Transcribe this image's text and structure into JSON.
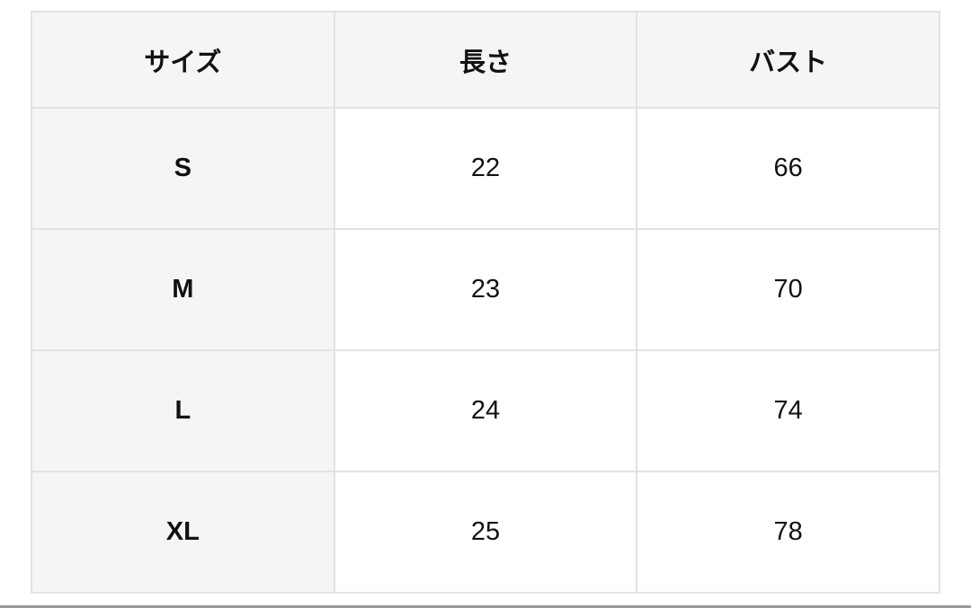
{
  "table": {
    "headers": [
      "サイズ",
      "長さ",
      "バスト"
    ],
    "rows": [
      [
        "S",
        "22",
        "66"
      ],
      [
        "M",
        "23",
        "70"
      ],
      [
        "L",
        "24",
        "74"
      ],
      [
        "XL",
        "25",
        "78"
      ]
    ]
  }
}
